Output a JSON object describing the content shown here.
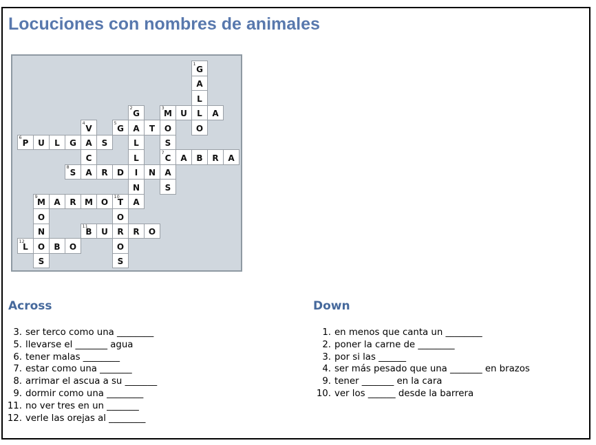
{
  "page": {
    "title": "Locuciones con nombres de animales"
  },
  "colors": {
    "title_blue": "#5878ad",
    "header_blue": "#46699c",
    "panel_bg": "#d0d7de",
    "panel_border": "#8e99a2",
    "cell_border": "#999fa6",
    "letter_ink": "#111111",
    "page_border": "#000000"
  },
  "crossword": {
    "rows": 14,
    "cols": 14,
    "cells": [
      {
        "r": 0,
        "c": 11,
        "letter": "G",
        "num": "1"
      },
      {
        "r": 1,
        "c": 11,
        "letter": "A"
      },
      {
        "r": 2,
        "c": 11,
        "letter": "L"
      },
      {
        "r": 3,
        "c": 7,
        "letter": "G",
        "num": "2"
      },
      {
        "r": 3,
        "c": 9,
        "letter": "M",
        "num": "3"
      },
      {
        "r": 3,
        "c": 10,
        "letter": "U"
      },
      {
        "r": 3,
        "c": 11,
        "letter": "L"
      },
      {
        "r": 3,
        "c": 12,
        "letter": "A"
      },
      {
        "r": 4,
        "c": 4,
        "letter": "V",
        "num": "4"
      },
      {
        "r": 4,
        "c": 6,
        "letter": "G",
        "num": "5"
      },
      {
        "r": 4,
        "c": 7,
        "letter": "A"
      },
      {
        "r": 4,
        "c": 8,
        "letter": "T"
      },
      {
        "r": 4,
        "c": 9,
        "letter": "O"
      },
      {
        "r": 4,
        "c": 11,
        "letter": "O"
      },
      {
        "r": 5,
        "c": 0,
        "letter": "P",
        "num": "6"
      },
      {
        "r": 5,
        "c": 1,
        "letter": "U"
      },
      {
        "r": 5,
        "c": 2,
        "letter": "L"
      },
      {
        "r": 5,
        "c": 3,
        "letter": "G"
      },
      {
        "r": 5,
        "c": 4,
        "letter": "A"
      },
      {
        "r": 5,
        "c": 5,
        "letter": "S"
      },
      {
        "r": 5,
        "c": 7,
        "letter": "L"
      },
      {
        "r": 5,
        "c": 9,
        "letter": "S"
      },
      {
        "r": 6,
        "c": 4,
        "letter": "C"
      },
      {
        "r": 6,
        "c": 7,
        "letter": "L"
      },
      {
        "r": 6,
        "c": 9,
        "letter": "C",
        "num": "7"
      },
      {
        "r": 6,
        "c": 10,
        "letter": "A"
      },
      {
        "r": 6,
        "c": 11,
        "letter": "B"
      },
      {
        "r": 6,
        "c": 12,
        "letter": "R"
      },
      {
        "r": 6,
        "c": 13,
        "letter": "A"
      },
      {
        "r": 7,
        "c": 3,
        "letter": "S",
        "num": "8"
      },
      {
        "r": 7,
        "c": 4,
        "letter": "A"
      },
      {
        "r": 7,
        "c": 5,
        "letter": "R"
      },
      {
        "r": 7,
        "c": 6,
        "letter": "D"
      },
      {
        "r": 7,
        "c": 7,
        "letter": "I"
      },
      {
        "r": 7,
        "c": 8,
        "letter": "N"
      },
      {
        "r": 7,
        "c": 9,
        "letter": "A"
      },
      {
        "r": 8,
        "c": 7,
        "letter": "N"
      },
      {
        "r": 8,
        "c": 9,
        "letter": "S"
      },
      {
        "r": 9,
        "c": 1,
        "letter": "M",
        "num": "9"
      },
      {
        "r": 9,
        "c": 2,
        "letter": "A"
      },
      {
        "r": 9,
        "c": 3,
        "letter": "R"
      },
      {
        "r": 9,
        "c": 4,
        "letter": "M"
      },
      {
        "r": 9,
        "c": 5,
        "letter": "O"
      },
      {
        "r": 9,
        "c": 6,
        "letter": "T",
        "num": "10"
      },
      {
        "r": 9,
        "c": 7,
        "letter": "A"
      },
      {
        "r": 10,
        "c": 1,
        "letter": "O"
      },
      {
        "r": 10,
        "c": 6,
        "letter": "O"
      },
      {
        "r": 11,
        "c": 1,
        "letter": "N"
      },
      {
        "r": 11,
        "c": 4,
        "letter": "B",
        "num": "11"
      },
      {
        "r": 11,
        "c": 5,
        "letter": "U"
      },
      {
        "r": 11,
        "c": 6,
        "letter": "R"
      },
      {
        "r": 11,
        "c": 7,
        "letter": "R"
      },
      {
        "r": 11,
        "c": 8,
        "letter": "O"
      },
      {
        "r": 12,
        "c": 0,
        "letter": "L",
        "num": "12"
      },
      {
        "r": 12,
        "c": 1,
        "letter": "O"
      },
      {
        "r": 12,
        "c": 2,
        "letter": "B"
      },
      {
        "r": 12,
        "c": 3,
        "letter": "O"
      },
      {
        "r": 12,
        "c": 6,
        "letter": "O"
      },
      {
        "r": 13,
        "c": 1,
        "letter": "S"
      },
      {
        "r": 13,
        "c": 6,
        "letter": "S"
      }
    ]
  },
  "clues": {
    "across_label": "Across",
    "down_label": "Down",
    "across": [
      {
        "num": "3.",
        "text": "ser terco como una ________"
      },
      {
        "num": "5.",
        "text": "llevarse el _______ agua"
      },
      {
        "num": "6.",
        "text": "tener malas ________"
      },
      {
        "num": "7.",
        "text": "estar como una _______"
      },
      {
        "num": "8.",
        "text": "arrimar el ascua a su _______"
      },
      {
        "num": "9.",
        "text": "dormir como una ________"
      },
      {
        "num": "11.",
        "text": "no ver tres en un _______"
      },
      {
        "num": "12.",
        "text": "verle las orejas al ________"
      }
    ],
    "down": [
      {
        "num": "1.",
        "text": "en menos que canta un ________"
      },
      {
        "num": "2.",
        "text": "poner la carne de ________"
      },
      {
        "num": "3.",
        "text": "por si las ______"
      },
      {
        "num": "4.",
        "text": "ser más pesado que una _______ en brazos"
      },
      {
        "num": "9.",
        "text": "tener _______ en la cara"
      },
      {
        "num": "10.",
        "text": "ver los ______ desde la barrera"
      }
    ]
  }
}
